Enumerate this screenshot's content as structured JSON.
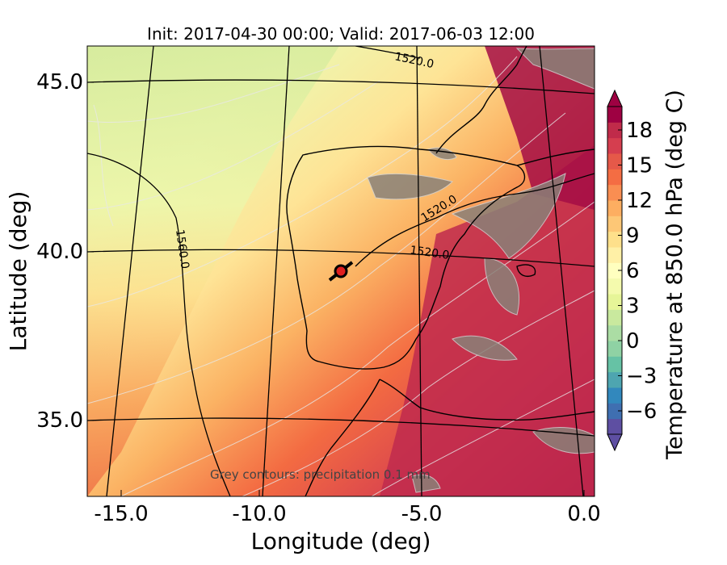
{
  "figure": {
    "title": "Init: 2017-04-30 00:00; Valid: 2017-06-03 12:00",
    "annotation": "Grey contours: precipitation     0.1 mm"
  },
  "map": {
    "xlabel": "Longitude (deg)",
    "ylabel": "Latitude (deg)",
    "xticks": [
      "-15.0",
      "-10.0",
      "-5.0",
      "0.0"
    ],
    "yticks": [
      "45.0",
      "40.0",
      "35.0"
    ],
    "xlim": [
      -15.9,
      0.1
    ],
    "ylim": [
      32.8,
      46.2
    ],
    "contour_labels": [
      "1520.0",
      "1520.0",
      "1520.0",
      "1560.0"
    ],
    "marker": {
      "lon": -7.7,
      "lat": 39.3,
      "color": "#e02020"
    }
  },
  "colorbar": {
    "label": "Temperature at 850.0 hPa (deg C)",
    "ticks": [
      "18",
      "15",
      "12",
      "9",
      "6",
      "3",
      "0",
      "−3",
      "−6"
    ],
    "range": [
      -8,
      20
    ],
    "colormap": "Spectral_r",
    "extend": "both"
  }
}
